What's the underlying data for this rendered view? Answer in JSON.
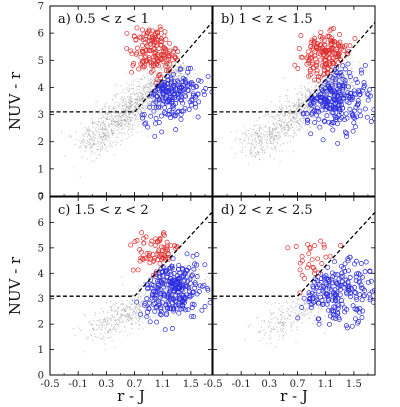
{
  "chart_data": {
    "type": "scatter",
    "xlabel": "r - J",
    "ylabel": "NUV - r",
    "xlim": [
      -0.5,
      1.8
    ],
    "ylim": [
      0,
      7
    ],
    "x_ticks": [
      "-0.5",
      "-0.1",
      "0.3",
      "0.7",
      "1.1",
      "1.5"
    ],
    "x_ticks_right": [
      "-0.5",
      "-0.1",
      "0.3",
      "0.7",
      "1.1",
      "1.5"
    ],
    "y_ticks": [
      "0",
      "1",
      "2",
      "3",
      "4",
      "5",
      "6",
      "7"
    ],
    "selection_boundary": {
      "style": "dashed",
      "points": [
        [
          -0.5,
          3.1
        ],
        [
          0.7,
          3.1
        ],
        [
          1.8,
          6.4
        ]
      ]
    },
    "colors": {
      "quiescent": "#e03030",
      "star_forming": "#2a2ae0",
      "all_galaxies": "#9a9a9a"
    },
    "panels": [
      {
        "id": "a",
        "label": "a)  0.5 < z < 1",
        "quiescent": {
          "center": [
            0.98,
            5.3
          ],
          "spread": [
            0.16,
            0.45
          ],
          "n": 160
        },
        "star_forming": {
          "center": [
            1.22,
            3.85
          ],
          "spread": [
            0.22,
            0.55
          ],
          "n": 190
        },
        "background": {
          "n": 1400,
          "from": [
            0.0,
            1.8
          ],
          "to": [
            1.3,
            4.6
          ],
          "scatter": 0.32
        }
      },
      {
        "id": "b",
        "label": "b)  1 < z < 1.5",
        "quiescent": {
          "center": [
            1.08,
            5.2
          ],
          "spread": [
            0.18,
            0.45
          ],
          "n": 170
        },
        "star_forming": {
          "center": [
            1.22,
            3.7
          ],
          "spread": [
            0.25,
            0.6
          ],
          "n": 240
        },
        "background": {
          "n": 1200,
          "from": [
            0.0,
            1.7
          ],
          "to": [
            1.4,
            4.4
          ],
          "scatter": 0.32
        }
      },
      {
        "id": "c",
        "label": "c)  1.5 < z < 2",
        "quiescent": {
          "center": [
            1.0,
            4.8
          ],
          "spread": [
            0.18,
            0.5
          ],
          "n": 75
        },
        "star_forming": {
          "center": [
            1.22,
            3.4
          ],
          "spread": [
            0.25,
            0.55
          ],
          "n": 260
        },
        "background": {
          "n": 800,
          "from": [
            0.1,
            1.6
          ],
          "to": [
            1.5,
            4.0
          ],
          "scatter": 0.3
        }
      },
      {
        "id": "d",
        "label": "d)  2 < z < 2.5",
        "quiescent": {
          "center": [
            1.0,
            4.4
          ],
          "spread": [
            0.2,
            0.5
          ],
          "n": 30
        },
        "star_forming": {
          "center": [
            1.25,
            3.3
          ],
          "spread": [
            0.28,
            0.6
          ],
          "n": 200
        },
        "background": {
          "n": 450,
          "from": [
            0.2,
            1.6
          ],
          "to": [
            1.5,
            3.8
          ],
          "scatter": 0.28
        }
      }
    ]
  }
}
